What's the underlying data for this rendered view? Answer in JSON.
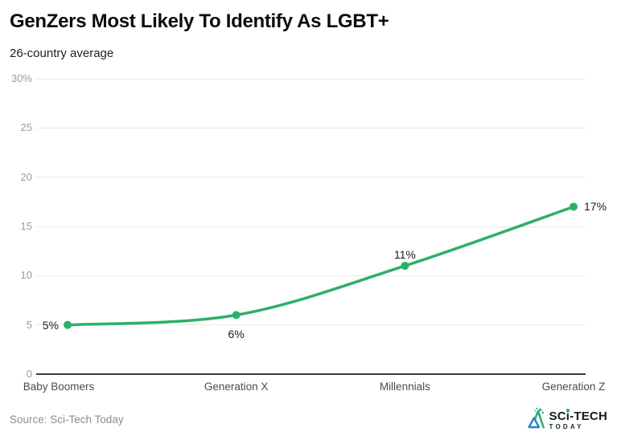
{
  "header": {
    "title": "GenZers Most Likely To Identify As LGBT+",
    "subtitle": "26-country average"
  },
  "chart_data": {
    "type": "line",
    "title": "GenZers Most Likely To Identify As LGBT+",
    "subtitle": "26-country average",
    "categories": [
      "Baby Boomers",
      "Generation X",
      "Millennials",
      "Generation Z"
    ],
    "values": [
      5,
      6,
      11,
      17
    ],
    "point_labels": [
      "5%",
      "6%",
      "11%",
      "17%"
    ],
    "label_positions": [
      "left",
      "below",
      "above",
      "right"
    ],
    "ylim": [
      0,
      30
    ],
    "yticks": [
      {
        "value": 0,
        "label": "0"
      },
      {
        "value": 5,
        "label": "5"
      },
      {
        "value": 10,
        "label": "10"
      },
      {
        "value": 15,
        "label": "15"
      },
      {
        "value": 20,
        "label": "20"
      },
      {
        "value": 25,
        "label": "25"
      },
      {
        "value": 30,
        "label": "30%"
      }
    ],
    "grid": true,
    "legend": "none",
    "line_color": "#2bb06a",
    "colors": {
      "grid": "#e9e9e9",
      "axis": "#3d3d3d",
      "tick_label": "#9b9b9b",
      "x_label": "#4c4c4c",
      "data_label": "#1d1d1d"
    }
  },
  "footer": {
    "source": "Source: Sci-Tech Today",
    "logo": {
      "name_pre": "SC",
      "name_i": "i",
      "name_post": "-TECH",
      "tagline": "TODAY"
    }
  }
}
